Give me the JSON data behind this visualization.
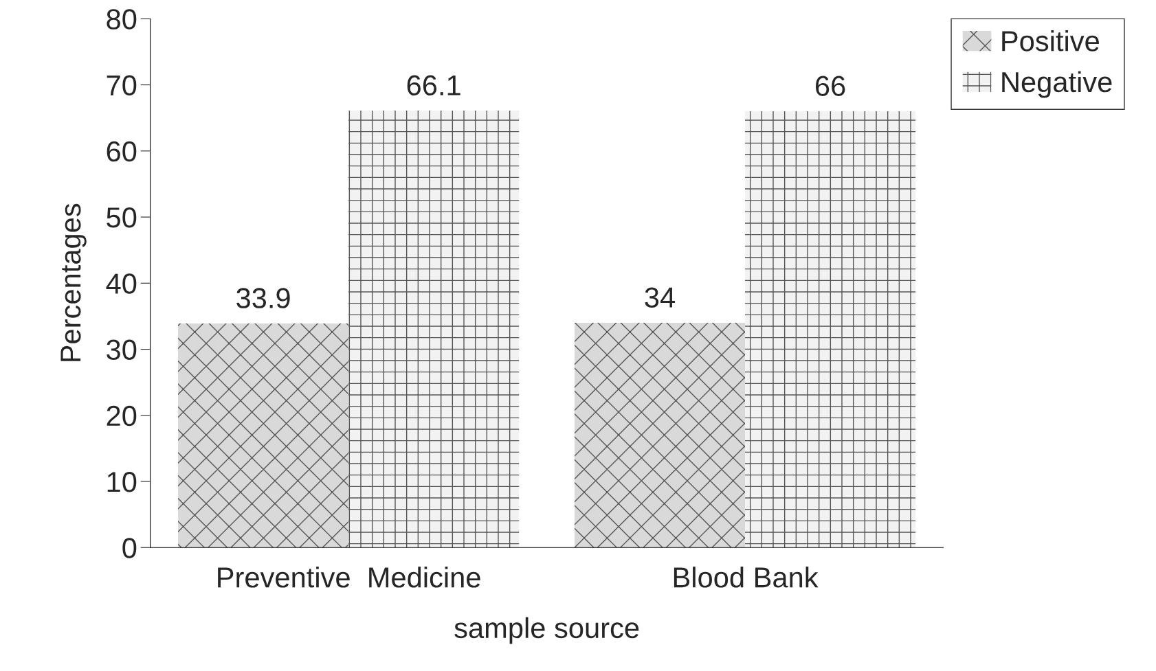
{
  "chart_data": {
    "type": "bar",
    "xlabel": "sample source",
    "ylabel": "Percentages",
    "categories": [
      "Preventive  Medicine",
      "Blood Bank"
    ],
    "series": [
      {
        "name": "Positive",
        "color": "#d9d9d9",
        "values": [
          33.9,
          34
        ]
      },
      {
        "name": "Negative",
        "color": "#f2f2f2",
        "values": [
          66.1,
          66
        ]
      }
    ],
    "ylim": [
      0,
      80
    ],
    "yticks": [
      0,
      10,
      20,
      30,
      40,
      50,
      60,
      70,
      80
    ],
    "data_labels": true,
    "grid": false,
    "legend": "top right"
  }
}
